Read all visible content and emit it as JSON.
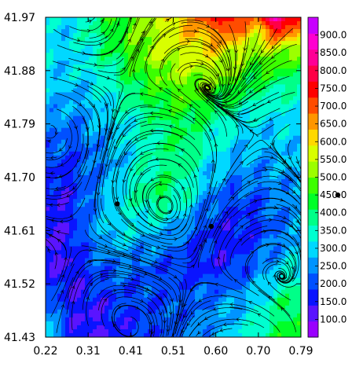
{
  "chart_data": {
    "type": "heatmap",
    "title": "",
    "xlabel": "",
    "ylabel": "",
    "xlim": [
      0.22,
      0.79
    ],
    "ylim": [
      41.43,
      41.97
    ],
    "x_ticks": [
      "0.22",
      "0.31",
      "0.41",
      "0.51",
      "0.60",
      "0.70",
      "0.79"
    ],
    "y_ticks": [
      "41.97",
      "41.88",
      "41.79",
      "41.70",
      "41.61",
      "41.52",
      "41.43"
    ],
    "colorbar": {
      "range": [
        50,
        950
      ],
      "labels": [
        "900.0",
        "850.0",
        "800.0",
        "750.0",
        "700.0",
        "650.0",
        "600.0",
        "550.0",
        "500.0",
        "450.0",
        "400.0",
        "350.0",
        "300.0",
        "250.0",
        "200.0",
        "150.0",
        "100.0"
      ],
      "colors": [
        "#9a00ff",
        "#5a14ff",
        "#0a14ff",
        "#0050ff",
        "#0094ff",
        "#00d8ff",
        "#00ffd0",
        "#00ff88",
        "#00ff28",
        "#3cff00",
        "#9cff00",
        "#d8ff00",
        "#ffd800",
        "#ff9600",
        "#ff4c00",
        "#ff0000",
        "#ff0046",
        "#ff0096",
        "#ff00d0",
        "#c800ff"
      ]
    },
    "field": [
      [
        300,
        300,
        380,
        450,
        500,
        550,
        650,
        700,
        800,
        650,
        900,
        700
      ],
      [
        300,
        300,
        350,
        420,
        500,
        550,
        560,
        600,
        560,
        500,
        520,
        480
      ],
      [
        300,
        280,
        300,
        350,
        420,
        470,
        500,
        480,
        450,
        400,
        380,
        350
      ],
      [
        250,
        230,
        260,
        300,
        350,
        400,
        420,
        380,
        330,
        300,
        300,
        300
      ],
      [
        200,
        180,
        220,
        270,
        330,
        380,
        400,
        320,
        280,
        260,
        270,
        300
      ],
      [
        150,
        160,
        230,
        300,
        380,
        420,
        360,
        250,
        200,
        210,
        240,
        250
      ],
      [
        130,
        150,
        250,
        320,
        300,
        280,
        230,
        180,
        150,
        170,
        220,
        260
      ],
      [
        150,
        130,
        200,
        230,
        220,
        200,
        180,
        160,
        170,
        220,
        280,
        330
      ],
      [
        250,
        150,
        150,
        180,
        190,
        200,
        210,
        230,
        260,
        300,
        380,
        420
      ],
      [
        330,
        180,
        120,
        150,
        170,
        200,
        230,
        260,
        300,
        360,
        420,
        450
      ]
    ],
    "markers": [
      {
        "x": 0.38,
        "y": 41.655
      },
      {
        "x": 0.59,
        "y": 41.617
      }
    ],
    "outside_marker": {
      "label_position": "right-of-colorbar"
    }
  }
}
